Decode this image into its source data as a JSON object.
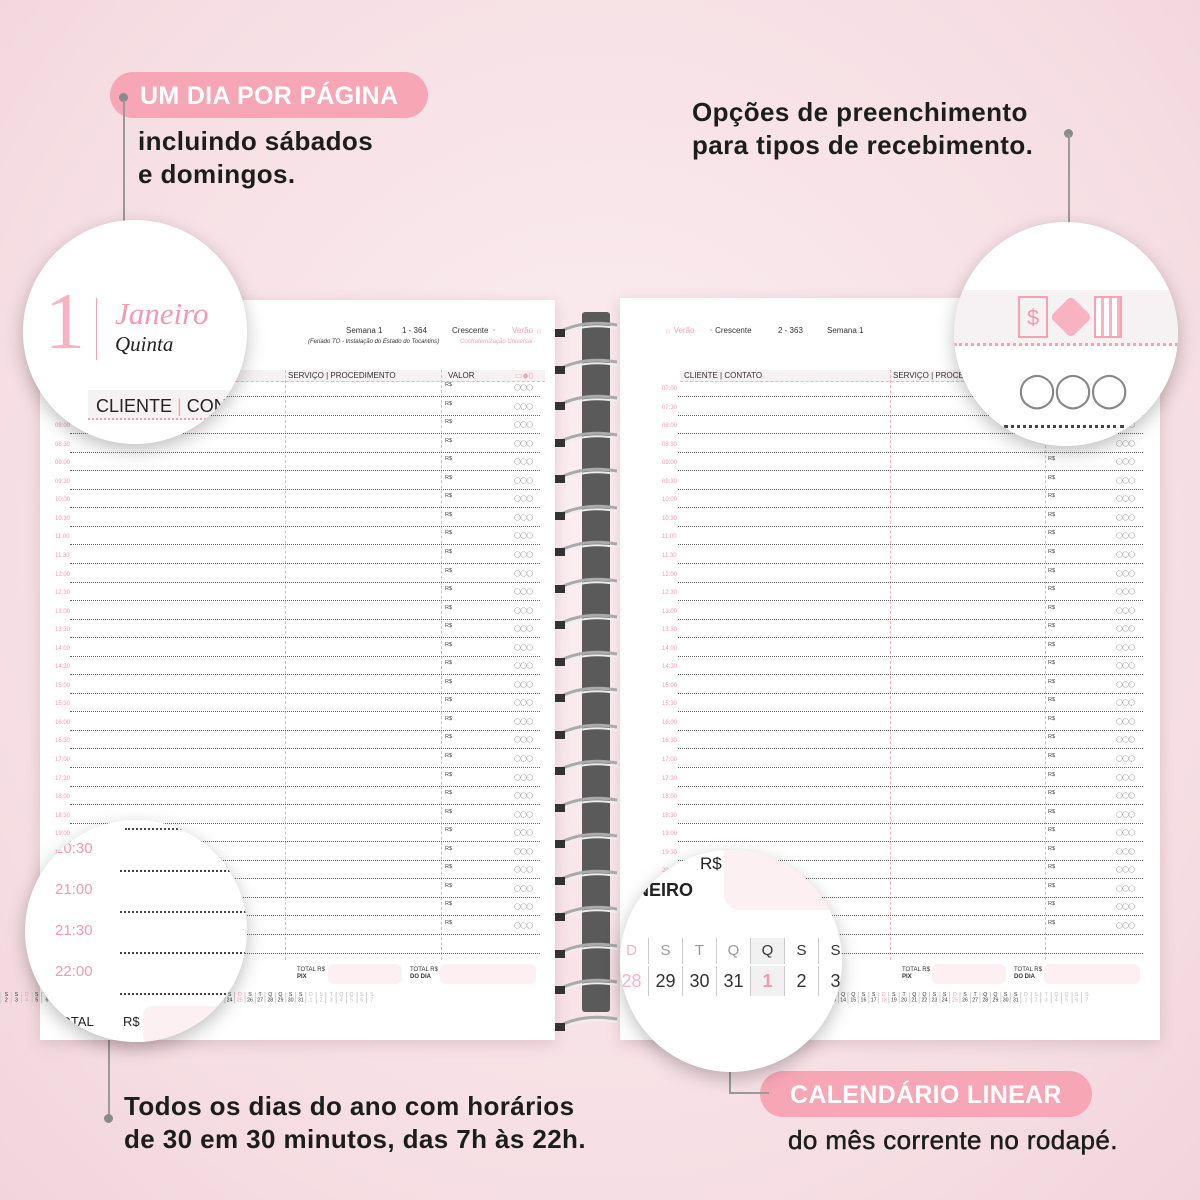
{
  "annotations": {
    "top_left_pill": "UM DIA POR PÁGINA",
    "top_left_text": [
      "incluindo sábados",
      "e domingos."
    ],
    "top_right_text": [
      "Opções de preenchimento",
      "para tipos de recebimento."
    ],
    "bottom_left_text": [
      "Todos os dias do ano com horários",
      "de 30 em 30 minutos, das 7h às 22h."
    ],
    "bottom_right_pill": "CALENDÁRIO LINEAR",
    "bottom_right_text": "do mês corrente no rodapé."
  },
  "left_page": {
    "day_number": "1",
    "month": "Janeiro",
    "weekday": "Quinta",
    "week": "Semana 1",
    "day_count": "1 - 364",
    "moon": "Crescente",
    "season": "Verão",
    "holiday_note": "(Feriado TO - Instalação do Estado do Tocantins)",
    "holiday": "Confraternização Universal",
    "columns": {
      "client": "CLIENTE",
      "contact": "CONTATO",
      "service": "SERVIÇO",
      "procedure": "PROCEDIMENTO",
      "value": "VALOR"
    },
    "totals": {
      "pix_label": "TOTAL",
      "pix_sub": "PIX",
      "day_label": "TOTAL",
      "day_sub": "DO DIA",
      "currency": "R$"
    }
  },
  "right_page": {
    "season": "Verão",
    "moon": "Crescente",
    "day_count": "2 - 363",
    "week": "Semana 1",
    "columns": {
      "client": "CLIENTE",
      "contact": "CONTATO",
      "service": "SERVIÇO",
      "procedure": "PROCEDIMENTO"
    },
    "totals": {
      "pix_label": "TOTAL",
      "pix_sub": "PIX",
      "day_label": "TOTAL",
      "day_sub": "DO DIA",
      "currency": "R$"
    }
  },
  "times": [
    "07:00",
    "07:30",
    "08:00",
    "08:30",
    "09:00",
    "09:30",
    "10:00",
    "10:30",
    "11:00",
    "11:30",
    "12:00",
    "12:30",
    "13:00",
    "13:30",
    "14:00",
    "14:30",
    "15:00",
    "15:30",
    "16:00",
    "16:30",
    "17:00",
    "17:30",
    "18:00",
    "18:30",
    "19:00",
    "19:30",
    "20:00",
    "20:30",
    "21:00",
    "21:30",
    "22:00"
  ],
  "currency": "R$",
  "payment_icons": [
    "cash-icon",
    "pix-icon",
    "card-icon"
  ],
  "calendar": {
    "letters": [
      "D",
      "S",
      "T",
      "Q",
      "Q",
      "S",
      "S"
    ],
    "days": [
      28,
      29,
      30,
      31,
      1,
      2,
      3,
      4,
      5,
      6,
      7,
      8,
      9,
      10,
      11,
      12,
      13,
      14,
      15,
      16,
      17,
      18,
      19,
      20,
      21,
      22,
      23,
      24,
      25,
      26,
      27,
      28,
      29,
      30,
      31,
      1,
      2,
      3,
      4,
      5,
      6,
      7
    ],
    "current_day": 1
  },
  "magnifiers": {
    "top_left": {
      "day": "1",
      "month": "Janeiro",
      "weekday": "Quinta",
      "client": "CLIENTE",
      "contact": "CONT"
    },
    "bottom_left": {
      "times": [
        "20:30",
        "21:00",
        "21:30",
        "22:00"
      ],
      "total": "TOTAL",
      "currency": "R$"
    },
    "bottom_right": {
      "currency": "R$",
      "month": "NEIRO",
      "letters": [
        "D",
        "S",
        "T",
        "Q",
        "Q",
        "S",
        "S"
      ],
      "days": [
        "28",
        "29",
        "30",
        "31",
        "1",
        "2",
        "3"
      ]
    }
  },
  "colors": {
    "accent": "#f7a6b6",
    "time": "#f39ab0",
    "background": "#f6dfe4"
  }
}
